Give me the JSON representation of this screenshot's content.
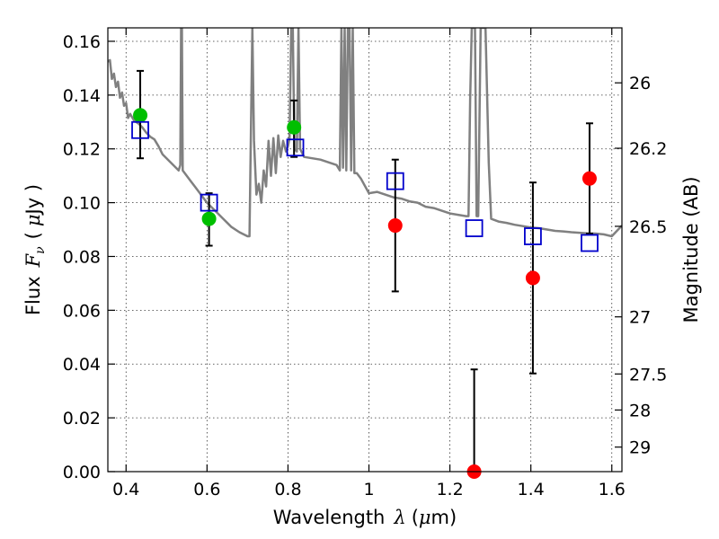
{
  "chart_data": {
    "type": "scatter",
    "xlabel_text": "Wavelength",
    "xlabel_symbol": "λ",
    "xlabel_unit_open": "(",
    "xlabel_unit_mu": "μ",
    "xlabel_unit_close": "m)",
    "ylabel_text": "Flux",
    "ylabel_symbol": "F",
    "ylabel_subscript": "ν",
    "ylabel_unit_open": "(",
    "ylabel_unit_mu": "μ",
    "ylabel_unit_close": "Jy )",
    "y2label": "Magnitude (AB)",
    "xlim": [
      0.355,
      1.625
    ],
    "ylim": [
      0,
      0.165
    ],
    "grid": true,
    "xticks": [
      {
        "value": 0.4,
        "label": "0.4"
      },
      {
        "value": 0.6,
        "label": "0.6"
      },
      {
        "value": 0.8,
        "label": "0.8"
      },
      {
        "value": 1.0,
        "label": "1"
      },
      {
        "value": 1.2,
        "label": "1.2"
      },
      {
        "value": 1.4,
        "label": "1.4"
      },
      {
        "value": 1.6,
        "label": "1.6"
      }
    ],
    "yticks": [
      {
        "value": 0.0,
        "label": "0.00"
      },
      {
        "value": 0.02,
        "label": "0.02"
      },
      {
        "value": 0.04,
        "label": "0.04"
      },
      {
        "value": 0.06,
        "label": "0.06"
      },
      {
        "value": 0.08,
        "label": "0.08"
      },
      {
        "value": 0.1,
        "label": "0.10"
      },
      {
        "value": 0.12,
        "label": "0.12"
      },
      {
        "value": 0.14,
        "label": "0.14"
      },
      {
        "value": 0.16,
        "label": "0.16"
      }
    ],
    "y2ticks": [
      {
        "value": 26.0,
        "label": "26"
      },
      {
        "value": 26.2,
        "label": "26.2"
      },
      {
        "value": 26.5,
        "label": "26.5"
      },
      {
        "value": 27.0,
        "label": "27"
      },
      {
        "value": 27.5,
        "label": "27.5"
      },
      {
        "value": 28.0,
        "label": "28"
      },
      {
        "value": 29.0,
        "label": "29"
      }
    ],
    "model_spectrum": {
      "color": "#808080",
      "points": [
        [
          0.355,
          0.1525
        ],
        [
          0.36,
          0.153
        ],
        [
          0.365,
          0.146
        ],
        [
          0.37,
          0.148
        ],
        [
          0.375,
          0.143
        ],
        [
          0.38,
          0.145
        ],
        [
          0.385,
          0.139
        ],
        [
          0.39,
          0.141
        ],
        [
          0.395,
          0.136
        ],
        [
          0.4,
          0.137
        ],
        [
          0.405,
          0.1315
        ],
        [
          0.41,
          0.133
        ],
        [
          0.42,
          0.1305
        ],
        [
          0.43,
          0.1295
        ],
        [
          0.44,
          0.128
        ],
        [
          0.45,
          0.126
        ],
        [
          0.46,
          0.1245
        ],
        [
          0.47,
          0.1235
        ],
        [
          0.48,
          0.121
        ],
        [
          0.49,
          0.118
        ],
        [
          0.5,
          0.1165
        ],
        [
          0.51,
          0.115
        ],
        [
          0.52,
          0.1135
        ],
        [
          0.53,
          0.112
        ],
        [
          0.534,
          0.114
        ],
        [
          0.536,
          0.165
        ],
        [
          0.538,
          0.165
        ],
        [
          0.54,
          0.112
        ],
        [
          0.55,
          0.11
        ],
        [
          0.56,
          0.108
        ],
        [
          0.57,
          0.106
        ],
        [
          0.58,
          0.104
        ],
        [
          0.59,
          0.102
        ],
        [
          0.6,
          0.1
        ],
        [
          0.62,
          0.097
        ],
        [
          0.64,
          0.094
        ],
        [
          0.66,
          0.091
        ],
        [
          0.68,
          0.089
        ],
        [
          0.7,
          0.0875
        ],
        [
          0.705,
          0.0875
        ],
        [
          0.708,
          0.122
        ],
        [
          0.712,
          0.165
        ],
        [
          0.716,
          0.123
        ],
        [
          0.722,
          0.103
        ],
        [
          0.728,
          0.107
        ],
        [
          0.734,
          0.1
        ],
        [
          0.74,
          0.112
        ],
        [
          0.746,
          0.106
        ],
        [
          0.752,
          0.123
        ],
        [
          0.758,
          0.11
        ],
        [
          0.764,
          0.124
        ],
        [
          0.77,
          0.111
        ],
        [
          0.776,
          0.125
        ],
        [
          0.782,
          0.117
        ],
        [
          0.788,
          0.123
        ],
        [
          0.795,
          0.119
        ],
        [
          0.8,
          0.121
        ],
        [
          0.804,
          0.124
        ],
        [
          0.808,
          0.165
        ],
        [
          0.812,
          0.165
        ],
        [
          0.816,
          0.12
        ],
        [
          0.822,
          0.119
        ],
        [
          0.826,
          0.165
        ],
        [
          0.83,
          0.12
        ],
        [
          0.84,
          0.117
        ],
        [
          0.86,
          0.1165
        ],
        [
          0.88,
          0.116
        ],
        [
          0.9,
          0.115
        ],
        [
          0.92,
          0.114
        ],
        [
          0.928,
          0.112
        ],
        [
          0.932,
          0.165
        ],
        [
          0.936,
          0.113
        ],
        [
          0.94,
          0.165
        ],
        [
          0.944,
          0.112
        ],
        [
          0.948,
          0.165
        ],
        [
          0.952,
          0.165
        ],
        [
          0.956,
          0.112
        ],
        [
          0.96,
          0.165
        ],
        [
          0.964,
          0.111
        ],
        [
          0.97,
          0.111
        ],
        [
          0.98,
          0.109
        ],
        [
          1.0,
          0.1035
        ],
        [
          1.02,
          0.104
        ],
        [
          1.04,
          0.103
        ],
        [
          1.06,
          0.102
        ],
        [
          1.08,
          0.1015
        ],
        [
          1.1,
          0.1005
        ],
        [
          1.12,
          0.1
        ],
        [
          1.14,
          0.0985
        ],
        [
          1.16,
          0.098
        ],
        [
          1.18,
          0.097
        ],
        [
          1.2,
          0.096
        ],
        [
          1.22,
          0.0955
        ],
        [
          1.24,
          0.095
        ],
        [
          1.246,
          0.095
        ],
        [
          1.25,
          0.138
        ],
        [
          1.254,
          0.165
        ],
        [
          1.262,
          0.165
        ],
        [
          1.266,
          0.095
        ],
        [
          1.27,
          0.095
        ],
        [
          1.276,
          0.165
        ],
        [
          1.288,
          0.165
        ],
        [
          1.296,
          0.115
        ],
        [
          1.302,
          0.094
        ],
        [
          1.32,
          0.093
        ],
        [
          1.34,
          0.0925
        ],
        [
          1.36,
          0.0918
        ],
        [
          1.38,
          0.0913
        ],
        [
          1.4,
          0.0908
        ],
        [
          1.42,
          0.0905
        ],
        [
          1.44,
          0.09
        ],
        [
          1.46,
          0.0895
        ],
        [
          1.48,
          0.0893
        ],
        [
          1.5,
          0.089
        ],
        [
          1.52,
          0.0888
        ],
        [
          1.54,
          0.0886
        ],
        [
          1.56,
          0.0885
        ],
        [
          1.58,
          0.0882
        ],
        [
          1.6,
          0.0875
        ],
        [
          1.625,
          0.0915
        ]
      ]
    },
    "series": [
      {
        "marker": "circle",
        "color": "#00bf00",
        "points": [
          {
            "x": 0.435,
            "y": 0.1325,
            "yerr_low": 0.1165,
            "yerr_high": 0.149
          },
          {
            "x": 0.605,
            "y": 0.094,
            "yerr_low": 0.084,
            "yerr_high": 0.1035
          },
          {
            "x": 0.815,
            "y": 0.128,
            "yerr_low": 0.117,
            "yerr_high": 0.138
          }
        ]
      },
      {
        "marker": "circle",
        "color": "#ff0000",
        "points": [
          {
            "x": 1.065,
            "y": 0.0915,
            "yerr_low": 0.067,
            "yerr_high": 0.116
          },
          {
            "x": 1.26,
            "y": 0.0,
            "yerr_low": 0.0,
            "yerr_high": 0.038
          },
          {
            "x": 1.405,
            "y": 0.072,
            "yerr_low": 0.0365,
            "yerr_high": 0.1075
          },
          {
            "x": 1.545,
            "y": 0.109,
            "yerr_low": 0.0885,
            "yerr_high": 0.1295
          }
        ]
      },
      {
        "marker": "square-open",
        "color": "#0000cc",
        "points": [
          {
            "x": 0.435,
            "y": 0.127
          },
          {
            "x": 0.605,
            "y": 0.1
          },
          {
            "x": 0.818,
            "y": 0.1205
          },
          {
            "x": 1.065,
            "y": 0.108
          },
          {
            "x": 1.26,
            "y": 0.0905
          },
          {
            "x": 1.405,
            "y": 0.0875
          },
          {
            "x": 1.545,
            "y": 0.085
          }
        ]
      }
    ]
  }
}
